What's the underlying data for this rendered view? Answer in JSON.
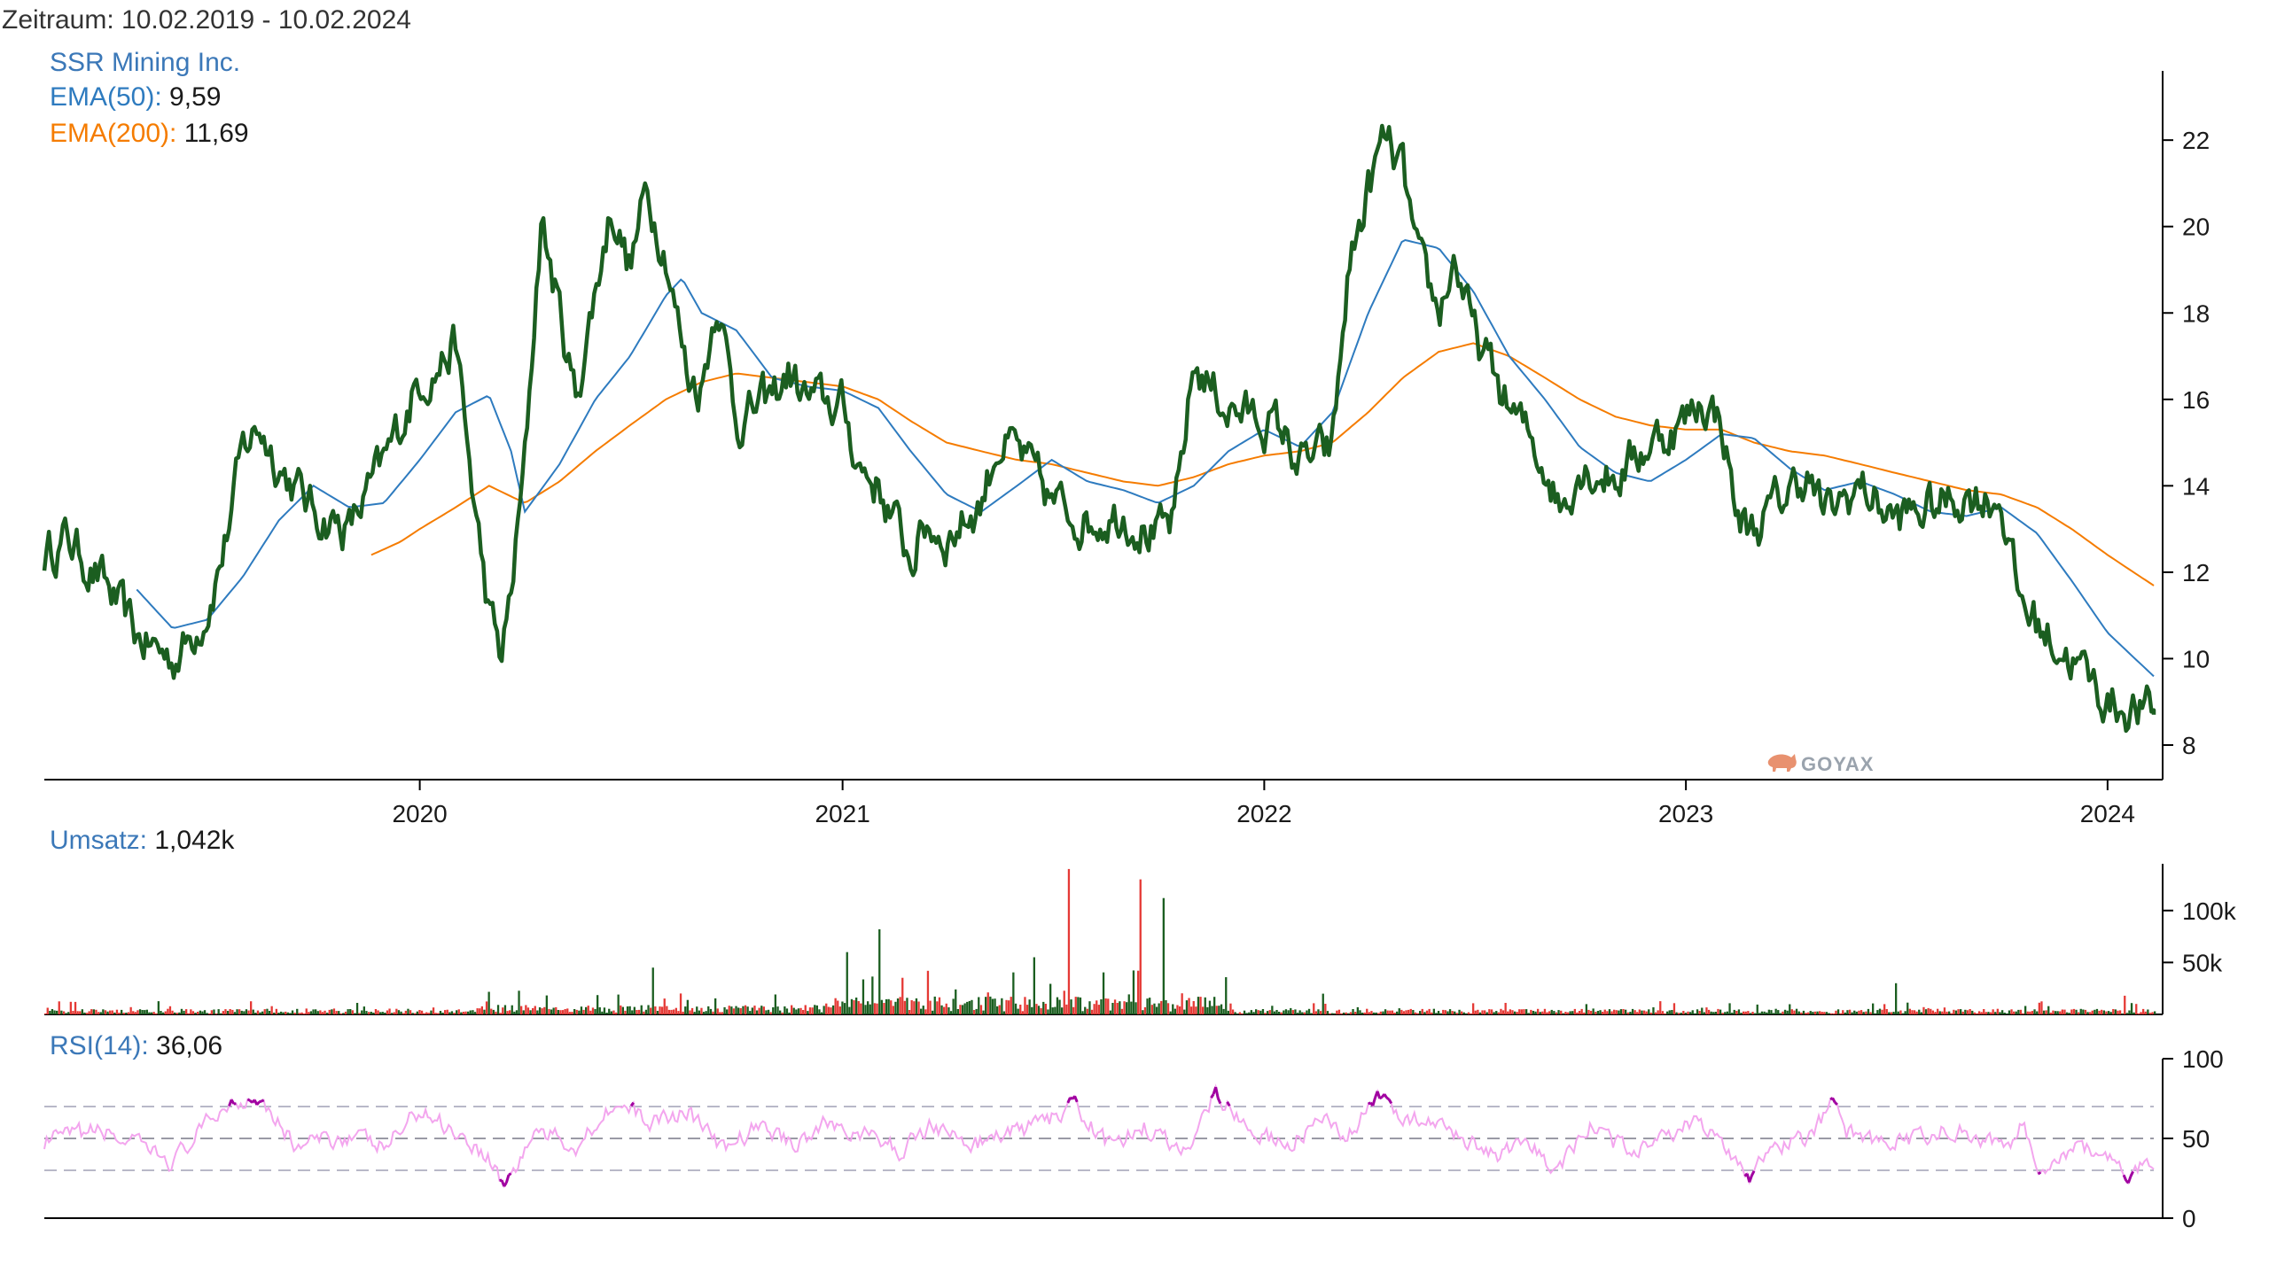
{
  "header": {
    "period_label": "Zeitraum: 10.02.2019 - 10.02.2024"
  },
  "legend": {
    "name": "SSR Mining Inc.",
    "ema50_label": "EMA(50):",
    "ema50_value": "9,59",
    "ema200_label": "EMA(200):",
    "ema200_value": "11,69",
    "volume_label": "Umsatz:",
    "volume_value": "1,042k",
    "rsi_label": "RSI(14):",
    "rsi_value": "36,06"
  },
  "watermark": "GOYAX",
  "colors": {
    "price": "#1b5e20",
    "ema50": "#2e7bbf",
    "ema200": "#f57c00",
    "legend_blue": "#3b78b8",
    "legend_orange": "#f57c00",
    "vol_up": "#1b5e20",
    "vol_down": "#e53935",
    "rsi_line": "#f3a6ee",
    "rsi_extreme": "#a000a0",
    "rsi_guides": "#b8b8c8"
  },
  "chart_data": [
    {
      "type": "line",
      "title": "SSR Mining Inc.",
      "x_range": [
        "2019-02-10",
        "2024-02-10"
      ],
      "ylim": [
        7.2,
        23.5
      ],
      "y_ticks": [
        8,
        10,
        12,
        14,
        16,
        18,
        20,
        22
      ],
      "x_ticks": [
        "2020",
        "2021",
        "2022",
        "2023",
        "2024"
      ],
      "series": [
        {
          "name": "SSR Mining Inc.",
          "x": [
            "2019-02-10",
            "2019-03-01",
            "2019-04-01",
            "2019-05-01",
            "2019-06-01",
            "2019-06-15",
            "2019-07-01",
            "2019-07-15",
            "2019-08-01",
            "2019-08-15",
            "2019-09-01",
            "2019-10-01",
            "2019-11-01",
            "2019-12-01",
            "2020-01-01",
            "2020-01-15",
            "2020-02-01",
            "2020-02-15",
            "2020-03-01",
            "2020-03-12",
            "2020-03-20",
            "2020-04-01",
            "2020-04-15",
            "2020-05-01",
            "2020-05-15",
            "2020-06-01",
            "2020-06-15",
            "2020-07-01",
            "2020-07-15",
            "2020-08-01",
            "2020-08-10",
            "2020-08-20",
            "2020-09-01",
            "2020-09-15",
            "2020-10-01",
            "2020-11-01",
            "2020-11-15",
            "2020-12-01",
            "2021-01-01",
            "2021-01-15",
            "2021-02-01",
            "2021-03-01",
            "2021-03-15",
            "2021-04-01",
            "2021-05-01",
            "2021-05-15",
            "2021-06-01",
            "2021-07-01",
            "2021-08-01",
            "2021-09-01",
            "2021-10-01",
            "2021-10-15",
            "2021-11-01",
            "2021-12-01",
            "2022-01-01",
            "2022-01-15",
            "2022-02-01",
            "2022-03-01",
            "2022-03-15",
            "2022-04-01",
            "2022-04-15",
            "2022-05-01",
            "2022-05-15",
            "2022-06-01",
            "2022-06-15",
            "2022-07-01",
            "2022-08-01",
            "2022-09-01",
            "2022-09-15",
            "2022-10-01",
            "2022-11-01",
            "2022-12-01",
            "2023-01-01",
            "2023-01-15",
            "2023-02-01",
            "2023-02-15",
            "2023-03-01",
            "2023-04-01",
            "2023-04-15",
            "2023-05-01",
            "2023-06-01",
            "2023-07-01",
            "2023-08-01",
            "2023-09-01",
            "2023-10-01",
            "2023-10-15",
            "2023-11-01",
            "2023-12-01",
            "2024-01-01",
            "2024-02-10"
          ],
          "values": [
            12.4,
            12.8,
            11.8,
            10.5,
            10.0,
            10.4,
            11.2,
            12.5,
            14.8,
            15.4,
            14.5,
            13.4,
            13.0,
            14.5,
            16.5,
            16.7,
            17.3,
            14.0,
            11.0,
            10.0,
            11.5,
            14.5,
            20.2,
            18.0,
            16.0,
            18.5,
            20.5,
            19.0,
            20.8,
            19.5,
            18.0,
            16.5,
            16.3,
            18.5,
            15.5,
            16.0,
            16.6,
            16.0,
            15.8,
            14.5,
            14.0,
            12.3,
            13.1,
            12.8,
            13.6,
            15.0,
            14.8,
            13.6,
            13.2,
            13.4,
            12.8,
            13.1,
            16.8,
            15.8,
            15.5,
            15.3,
            14.5,
            14.8,
            19.0,
            20.8,
            22.0,
            21.2,
            19.0,
            18.0,
            19.3,
            17.5,
            15.8,
            14.5,
            13.5,
            14.5,
            14.2,
            15.0,
            15.5,
            16.0,
            15.5,
            13.2,
            13.0,
            13.9,
            14.3,
            13.3,
            14.0,
            13.2,
            13.5,
            13.8,
            13.7,
            11.5,
            10.8,
            10.0,
            9.0,
            8.7
          ]
        },
        {
          "name": "EMA(50)",
          "x": [
            "2019-05-01",
            "2019-06-01",
            "2019-07-01",
            "2019-08-01",
            "2019-09-01",
            "2019-10-01",
            "2019-11-01",
            "2019-12-01",
            "2020-01-01",
            "2020-02-01",
            "2020-03-01",
            "2020-03-20",
            "2020-04-01",
            "2020-05-01",
            "2020-06-01",
            "2020-07-01",
            "2020-08-01",
            "2020-08-15",
            "2020-09-01",
            "2020-10-01",
            "2020-11-01",
            "2020-12-01",
            "2021-01-01",
            "2021-02-01",
            "2021-03-01",
            "2021-04-01",
            "2021-05-01",
            "2021-06-01",
            "2021-07-01",
            "2021-08-01",
            "2021-09-01",
            "2021-10-01",
            "2021-11-01",
            "2021-12-01",
            "2022-01-01",
            "2022-02-01",
            "2022-03-01",
            "2022-04-01",
            "2022-05-01",
            "2022-06-01",
            "2022-07-01",
            "2022-08-01",
            "2022-09-01",
            "2022-10-01",
            "2022-11-01",
            "2022-12-01",
            "2023-01-01",
            "2023-02-01",
            "2023-03-01",
            "2023-04-01",
            "2023-05-01",
            "2023-06-01",
            "2023-07-01",
            "2023-08-01",
            "2023-09-01",
            "2023-10-01",
            "2023-11-01",
            "2023-12-01",
            "2024-01-01",
            "2024-02-10"
          ],
          "values": [
            11.6,
            10.7,
            10.9,
            11.9,
            13.2,
            14.0,
            13.5,
            13.6,
            14.6,
            15.7,
            16.1,
            14.8,
            13.4,
            14.5,
            16.0,
            17.0,
            18.4,
            18.8,
            18.0,
            17.6,
            16.5,
            16.3,
            16.2,
            15.8,
            14.8,
            13.8,
            13.4,
            14.0,
            14.6,
            14.1,
            13.9,
            13.6,
            14.0,
            14.8,
            15.3,
            14.9,
            15.7,
            18.0,
            19.7,
            19.5,
            18.5,
            17.0,
            16.0,
            14.9,
            14.3,
            14.1,
            14.6,
            15.2,
            15.1,
            14.4,
            13.9,
            14.1,
            13.8,
            13.4,
            13.3,
            13.5,
            12.9,
            11.8,
            10.6,
            9.59
          ]
        },
        {
          "name": "EMA(200)",
          "x": [
            "2019-11-20",
            "2019-12-15",
            "2020-01-01",
            "2020-02-01",
            "2020-03-01",
            "2020-04-01",
            "2020-05-01",
            "2020-06-01",
            "2020-07-01",
            "2020-08-01",
            "2020-09-01",
            "2020-10-01",
            "2020-11-01",
            "2020-12-01",
            "2021-01-01",
            "2021-02-01",
            "2021-03-01",
            "2021-04-01",
            "2021-05-01",
            "2021-06-01",
            "2021-07-01",
            "2021-08-01",
            "2021-09-01",
            "2021-10-01",
            "2021-11-01",
            "2021-12-01",
            "2022-01-01",
            "2022-02-01",
            "2022-03-01",
            "2022-04-01",
            "2022-05-01",
            "2022-06-01",
            "2022-07-01",
            "2022-08-01",
            "2022-09-01",
            "2022-10-01",
            "2022-11-01",
            "2022-12-01",
            "2023-01-01",
            "2023-02-01",
            "2023-03-01",
            "2023-04-01",
            "2023-05-01",
            "2023-06-01",
            "2023-07-01",
            "2023-08-01",
            "2023-09-01",
            "2023-10-01",
            "2023-11-01",
            "2023-12-01",
            "2024-01-01",
            "2024-02-10"
          ],
          "values": [
            12.4,
            12.7,
            13.0,
            13.5,
            14.0,
            13.6,
            14.1,
            14.8,
            15.4,
            16.0,
            16.4,
            16.6,
            16.5,
            16.4,
            16.3,
            16.0,
            15.5,
            15.0,
            14.8,
            14.6,
            14.5,
            14.3,
            14.1,
            14.0,
            14.2,
            14.5,
            14.7,
            14.8,
            15.0,
            15.7,
            16.5,
            17.1,
            17.3,
            17.0,
            16.5,
            16.0,
            15.6,
            15.4,
            15.3,
            15.3,
            15.0,
            14.8,
            14.7,
            14.5,
            14.3,
            14.1,
            13.9,
            13.8,
            13.5,
            13.0,
            12.4,
            11.69
          ]
        }
      ]
    },
    {
      "type": "bar",
      "title": "Umsatz",
      "ylim": [
        0,
        145000
      ],
      "y_ticks": [
        50000,
        100000
      ],
      "y_tick_labels": [
        "50k",
        "100k"
      ],
      "x_range": [
        "2019-02-10",
        "2024-02-10"
      ],
      "spikes": [
        {
          "x": "2020-03-01",
          "v": 25000
        },
        {
          "x": "2020-06-15",
          "v": 30000
        },
        {
          "x": "2020-07-20",
          "v": 45000
        },
        {
          "x": "2021-01-04",
          "v": 60000
        },
        {
          "x": "2021-02-01",
          "v": 82000
        },
        {
          "x": "2021-03-15",
          "v": 42000
        },
        {
          "x": "2021-06-15",
          "v": 55000
        },
        {
          "x": "2021-07-15",
          "v": 140000
        },
        {
          "x": "2021-08-05",
          "v": 85000
        },
        {
          "x": "2021-08-15",
          "v": 65000
        },
        {
          "x": "2021-09-15",
          "v": 130000
        },
        {
          "x": "2021-09-20",
          "v": 90000
        },
        {
          "x": "2021-10-05",
          "v": 112000
        },
        {
          "x": "2021-10-20",
          "v": 78000
        },
        {
          "x": "2021-11-15",
          "v": 45000
        },
        {
          "x": "2022-02-20",
          "v": 20000
        },
        {
          "x": "2023-07-01",
          "v": 30000
        },
        {
          "x": "2024-01-15",
          "v": 18000
        }
      ]
    },
    {
      "type": "line",
      "title": "RSI(14)",
      "ylim": [
        0,
        100
      ],
      "y_ticks": [
        0,
        50,
        100
      ],
      "guides": [
        30,
        50,
        70
      ],
      "x_range": [
        "2019-02-10",
        "2024-02-10"
      ],
      "x": [
        "2019-02-10",
        "2019-04-01",
        "2019-06-01",
        "2019-07-15",
        "2019-08-15",
        "2019-09-15",
        "2019-11-01",
        "2019-12-01",
        "2020-01-01",
        "2020-02-01",
        "2020-03-01",
        "2020-03-15",
        "2020-04-10",
        "2020-05-15",
        "2020-06-15",
        "2020-07-20",
        "2020-08-20",
        "2020-09-20",
        "2020-10-20",
        "2020-11-20",
        "2020-12-20",
        "2021-01-20",
        "2021-02-20",
        "2021-03-20",
        "2021-04-20",
        "2021-05-20",
        "2021-06-20",
        "2021-07-20",
        "2021-08-20",
        "2021-09-20",
        "2021-10-20",
        "2021-11-01",
        "2021-11-20",
        "2021-12-20",
        "2022-01-20",
        "2022-02-20",
        "2022-03-10",
        "2022-04-10",
        "2022-05-10",
        "2022-06-20",
        "2022-07-20",
        "2022-08-20",
        "2022-09-10",
        "2022-10-10",
        "2022-11-10",
        "2022-12-10",
        "2023-01-10",
        "2023-02-10",
        "2023-02-25",
        "2023-03-20",
        "2023-04-20",
        "2023-05-10",
        "2023-05-20",
        "2023-06-20",
        "2023-07-20",
        "2023-08-20",
        "2023-09-20",
        "2023-10-10",
        "2023-10-20",
        "2023-11-05",
        "2023-12-01",
        "2024-01-01",
        "2024-01-20",
        "2024-02-10"
      ],
      "values": [
        48,
        55,
        35,
        70,
        78,
        45,
        52,
        44,
        68,
        55,
        38,
        20,
        55,
        45,
        72,
        60,
        68,
        42,
        58,
        47,
        60,
        52,
        42,
        60,
        45,
        52,
        58,
        70,
        45,
        57,
        42,
        52,
        80,
        55,
        45,
        62,
        48,
        75,
        62,
        52,
        38,
        45,
        30,
        58,
        42,
        52,
        60,
        40,
        28,
        45,
        52,
        74,
        55,
        45,
        50,
        57,
        48,
        45,
        62,
        28,
        45,
        38,
        27,
        36.06
      ]
    }
  ]
}
